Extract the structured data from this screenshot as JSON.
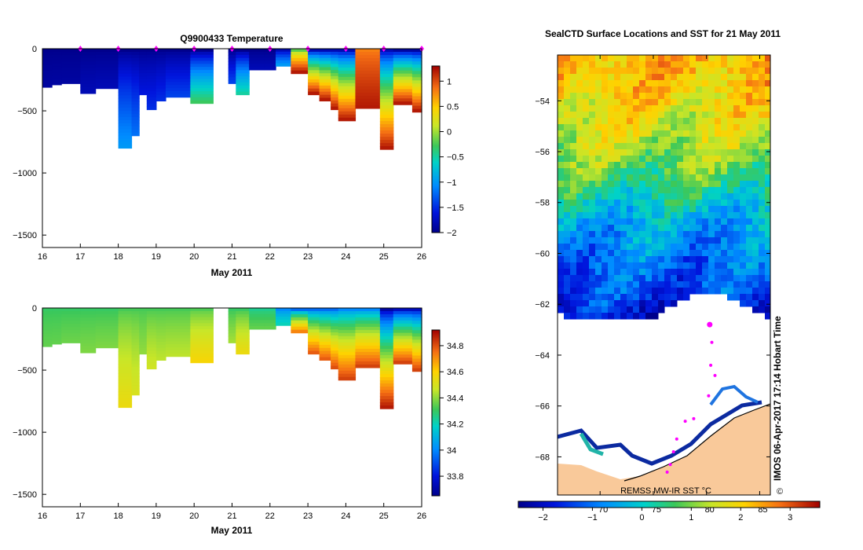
{
  "chart_data": [
    {
      "type": "heatmap",
      "title": "Q9900433  Temperature",
      "xlabel": "May 2011",
      "ylabel": "",
      "xlim": [
        16,
        26
      ],
      "ylim": [
        -1600,
        0
      ],
      "x_ticks": [
        "16",
        "17",
        "18",
        "19",
        "20",
        "21",
        "22",
        "23",
        "24",
        "25",
        "26"
      ],
      "y_ticks": [
        "0",
        "−500",
        "−1000",
        "−1500"
      ],
      "colorbar": {
        "range": [
          -2,
          1.3
        ],
        "ticks": [
          "1",
          "0.5",
          "0",
          "−0.5",
          "−1",
          "−1.5",
          "−2"
        ],
        "tick_values": [
          1,
          0.5,
          0,
          -0.5,
          -1,
          -1.5,
          -2
        ]
      },
      "profile_markers_day": [
        17.0,
        18.0,
        19.0,
        20.0,
        21.0,
        22.0,
        23.0,
        24.0,
        25.0,
        26.0
      ],
      "columns": [
        {
          "t0": 16.0,
          "t1": 16.25,
          "depth": 310,
          "surface": -2.0,
          "bottom": -1.9
        },
        {
          "t0": 16.25,
          "t1": 16.5,
          "depth": 290,
          "surface": -2.0,
          "bottom": -1.9
        },
        {
          "t0": 16.5,
          "t1": 17.0,
          "depth": 280,
          "surface": -2.0,
          "bottom": -1.9
        },
        {
          "t0": 17.0,
          "t1": 17.4,
          "depth": 360,
          "surface": -2.0,
          "bottom": -1.8
        },
        {
          "t0": 17.4,
          "t1": 18.0,
          "depth": 320,
          "surface": -2.0,
          "bottom": -1.8
        },
        {
          "t0": 18.0,
          "t1": 18.35,
          "depth": 800,
          "surface": -2.0,
          "bottom": -1.0
        },
        {
          "t0": 18.35,
          "t1": 18.55,
          "depth": 700,
          "surface": -2.0,
          "bottom": -1.2
        },
        {
          "t0": 18.55,
          "t1": 18.75,
          "depth": 370,
          "surface": -2.0,
          "bottom": -1.6
        },
        {
          "t0": 18.75,
          "t1": 19.0,
          "depth": 490,
          "surface": -2.0,
          "bottom": -1.5
        },
        {
          "t0": 19.0,
          "t1": 19.25,
          "depth": 420,
          "surface": -2.0,
          "bottom": -1.5
        },
        {
          "t0": 19.25,
          "t1": 19.9,
          "depth": 390,
          "surface": -2.0,
          "bottom": -1.4
        },
        {
          "t0": 19.9,
          "t1": 20.5,
          "depth": 440,
          "surface": -2.0,
          "bottom": -0.3
        },
        {
          "t0": 20.9,
          "t1": 21.1,
          "depth": 280,
          "surface": -2.0,
          "bottom": -1.4
        },
        {
          "t0": 21.1,
          "t1": 21.45,
          "depth": 370,
          "surface": -2.0,
          "bottom": -0.5
        },
        {
          "t0": 21.45,
          "t1": 21.85,
          "depth": 170,
          "surface": -2.0,
          "bottom": -1.8
        },
        {
          "t0": 21.85,
          "t1": 22.15,
          "depth": 170,
          "surface": -2.0,
          "bottom": -1.8
        },
        {
          "t0": 22.15,
          "t1": 22.55,
          "depth": 140,
          "surface": -1.8,
          "bottom": -1.0
        },
        {
          "t0": 22.55,
          "t1": 23.0,
          "depth": 200,
          "surface": -0.2,
          "bottom": 1.2
        },
        {
          "t0": 23.0,
          "t1": 23.3,
          "depth": 370,
          "surface": -1.8,
          "bottom": 1.2
        },
        {
          "t0": 23.3,
          "t1": 23.6,
          "depth": 420,
          "surface": -1.8,
          "bottom": 1.2
        },
        {
          "t0": 23.6,
          "t1": 23.8,
          "depth": 490,
          "surface": -1.8,
          "bottom": 1.2
        },
        {
          "t0": 23.8,
          "t1": 24.25,
          "depth": 580,
          "surface": -1.8,
          "bottom": 1.2
        },
        {
          "t0": 24.25,
          "t1": 24.9,
          "depth": 480,
          "surface": 0.8,
          "bottom": 1.2
        },
        {
          "t0": 24.9,
          "t1": 25.25,
          "depth": 810,
          "surface": -1.8,
          "bottom": 1.2
        },
        {
          "t0": 25.25,
          "t1": 25.75,
          "depth": 450,
          "surface": -1.9,
          "bottom": 1.2
        },
        {
          "t0": 25.75,
          "t1": 26.0,
          "depth": 510,
          "surface": -1.9,
          "bottom": 1.2
        }
      ]
    },
    {
      "type": "heatmap",
      "title": "",
      "xlabel": "May 2011",
      "ylabel": "",
      "xlim": [
        16,
        26
      ],
      "ylim": [
        -1600,
        0
      ],
      "x_ticks": [
        "16",
        "17",
        "18",
        "19",
        "20",
        "21",
        "22",
        "23",
        "24",
        "25",
        "26"
      ],
      "y_ticks": [
        "0",
        "−500",
        "−1000",
        "−1500"
      ],
      "colorbar": {
        "range": [
          33.65,
          34.92
        ],
        "ticks": [
          "34.8",
          "34.6",
          "34.4",
          "34.2",
          "34",
          "33.8"
        ],
        "tick_values": [
          34.8,
          34.6,
          34.4,
          34.2,
          34.0,
          33.8
        ]
      },
      "columns": [
        {
          "t0": 16.0,
          "t1": 16.25,
          "depth": 310,
          "surface": 34.3,
          "bottom": 34.35
        },
        {
          "t0": 16.25,
          "t1": 16.5,
          "depth": 290,
          "surface": 34.3,
          "bottom": 34.35
        },
        {
          "t0": 16.5,
          "t1": 17.0,
          "depth": 280,
          "surface": 34.3,
          "bottom": 34.36
        },
        {
          "t0": 17.0,
          "t1": 17.4,
          "depth": 360,
          "surface": 34.3,
          "bottom": 34.38
        },
        {
          "t0": 17.4,
          "t1": 18.0,
          "depth": 320,
          "surface": 34.3,
          "bottom": 34.38
        },
        {
          "t0": 18.0,
          "t1": 18.35,
          "depth": 800,
          "surface": 34.32,
          "bottom": 34.55
        },
        {
          "t0": 18.35,
          "t1": 18.55,
          "depth": 700,
          "surface": 34.32,
          "bottom": 34.5
        },
        {
          "t0": 18.55,
          "t1": 18.75,
          "depth": 370,
          "surface": 34.32,
          "bottom": 34.4
        },
        {
          "t0": 18.75,
          "t1": 19.0,
          "depth": 490,
          "surface": 34.32,
          "bottom": 34.48
        },
        {
          "t0": 19.0,
          "t1": 19.25,
          "depth": 420,
          "surface": 34.32,
          "bottom": 34.45
        },
        {
          "t0": 19.25,
          "t1": 19.9,
          "depth": 390,
          "surface": 34.32,
          "bottom": 34.45
        },
        {
          "t0": 19.9,
          "t1": 20.5,
          "depth": 440,
          "surface": 34.33,
          "bottom": 34.58
        },
        {
          "t0": 20.9,
          "t1": 21.1,
          "depth": 280,
          "surface": 34.3,
          "bottom": 34.42
        },
        {
          "t0": 21.1,
          "t1": 21.45,
          "depth": 370,
          "surface": 34.3,
          "bottom": 34.55
        },
        {
          "t0": 21.45,
          "t1": 21.85,
          "depth": 170,
          "surface": 34.25,
          "bottom": 34.35
        },
        {
          "t0": 21.85,
          "t1": 22.15,
          "depth": 170,
          "surface": 34.25,
          "bottom": 34.35
        },
        {
          "t0": 22.15,
          "t1": 22.55,
          "depth": 140,
          "surface": 34.0,
          "bottom": 34.2
        },
        {
          "t0": 22.55,
          "t1": 23.0,
          "depth": 200,
          "surface": 33.95,
          "bottom": 34.72
        },
        {
          "t0": 23.0,
          "t1": 23.3,
          "depth": 370,
          "surface": 33.95,
          "bottom": 34.78
        },
        {
          "t0": 23.3,
          "t1": 23.6,
          "depth": 420,
          "surface": 33.95,
          "bottom": 34.78
        },
        {
          "t0": 23.6,
          "t1": 23.8,
          "depth": 490,
          "surface": 33.95,
          "bottom": 34.8
        },
        {
          "t0": 23.8,
          "t1": 24.25,
          "depth": 580,
          "surface": 34.0,
          "bottom": 34.82
        },
        {
          "t0": 24.25,
          "t1": 24.9,
          "depth": 480,
          "surface": 34.0,
          "bottom": 34.82
        },
        {
          "t0": 24.9,
          "t1": 25.25,
          "depth": 810,
          "surface": 33.7,
          "bottom": 34.88
        },
        {
          "t0": 25.25,
          "t1": 25.75,
          "depth": 450,
          "surface": 33.75,
          "bottom": 34.82
        },
        {
          "t0": 25.75,
          "t1": 26.0,
          "depth": 510,
          "surface": 33.75,
          "bottom": 34.82
        }
      ]
    },
    {
      "type": "heatmap",
      "title": "SealCTD Surface Locations and SST for 21 May 2011",
      "ylim": [
        -69.5,
        -52.2
      ],
      "y_ticks": [
        "−54",
        "−56",
        "−58",
        "−60",
        "−62",
        "−64",
        "−66",
        "−68"
      ],
      "y_tick_values": [
        -54,
        -56,
        -58,
        -60,
        -62,
        -64,
        -66,
        -68
      ],
      "x_ticks": [
        "70",
        "75",
        "80",
        "85"
      ],
      "x_tick_values": [
        70,
        75,
        80,
        85
      ],
      "xlim": [
        66.0,
        86.0
      ],
      "colorbar_label": "REMSS MW-IR SST °C",
      "colorbar": {
        "range": [
          -2.5,
          3.6
        ],
        "ticks": [
          "−2",
          "−1",
          "0",
          "1",
          "2",
          "3"
        ],
        "tick_values": [
          -2,
          -1,
          0,
          1,
          2,
          3
        ]
      },
      "sst_latitude_profile": [
        {
          "lat": -52.5,
          "sst": 2.3
        },
        {
          "lat": -54.0,
          "sst": 1.9
        },
        {
          "lat": -55.0,
          "sst": 1.6
        },
        {
          "lat": -56.5,
          "sst": 0.9
        },
        {
          "lat": -57.5,
          "sst": 0.3
        },
        {
          "lat": -58.5,
          "sst": -0.4
        },
        {
          "lat": -60.0,
          "sst": -0.9
        },
        {
          "lat": -61.5,
          "sst": -1.4
        },
        {
          "lat": -62.5,
          "sst": -1.8
        }
      ],
      "seal_track": [
        {
          "lon": 80.3,
          "lat": -62.8
        },
        {
          "lon": 80.5,
          "lat": -63.5
        },
        {
          "lon": 80.4,
          "lat": -64.4
        },
        {
          "lon": 80.8,
          "lat": -64.8
        },
        {
          "lon": 80.2,
          "lat": -65.6
        },
        {
          "lon": 78.8,
          "lat": -66.5
        },
        {
          "lon": 78.0,
          "lat": -66.6
        },
        {
          "lon": 77.2,
          "lat": -67.3
        },
        {
          "lon": 76.9,
          "lat": -67.8
        },
        {
          "lon": 76.6,
          "lat": -68.3
        },
        {
          "lon": 76.3,
          "lat": -68.6
        }
      ],
      "timestamp_label": "IMOS 06-Apr-2017 17:14 Hobart Time",
      "copyright_symbol": "©"
    }
  ]
}
